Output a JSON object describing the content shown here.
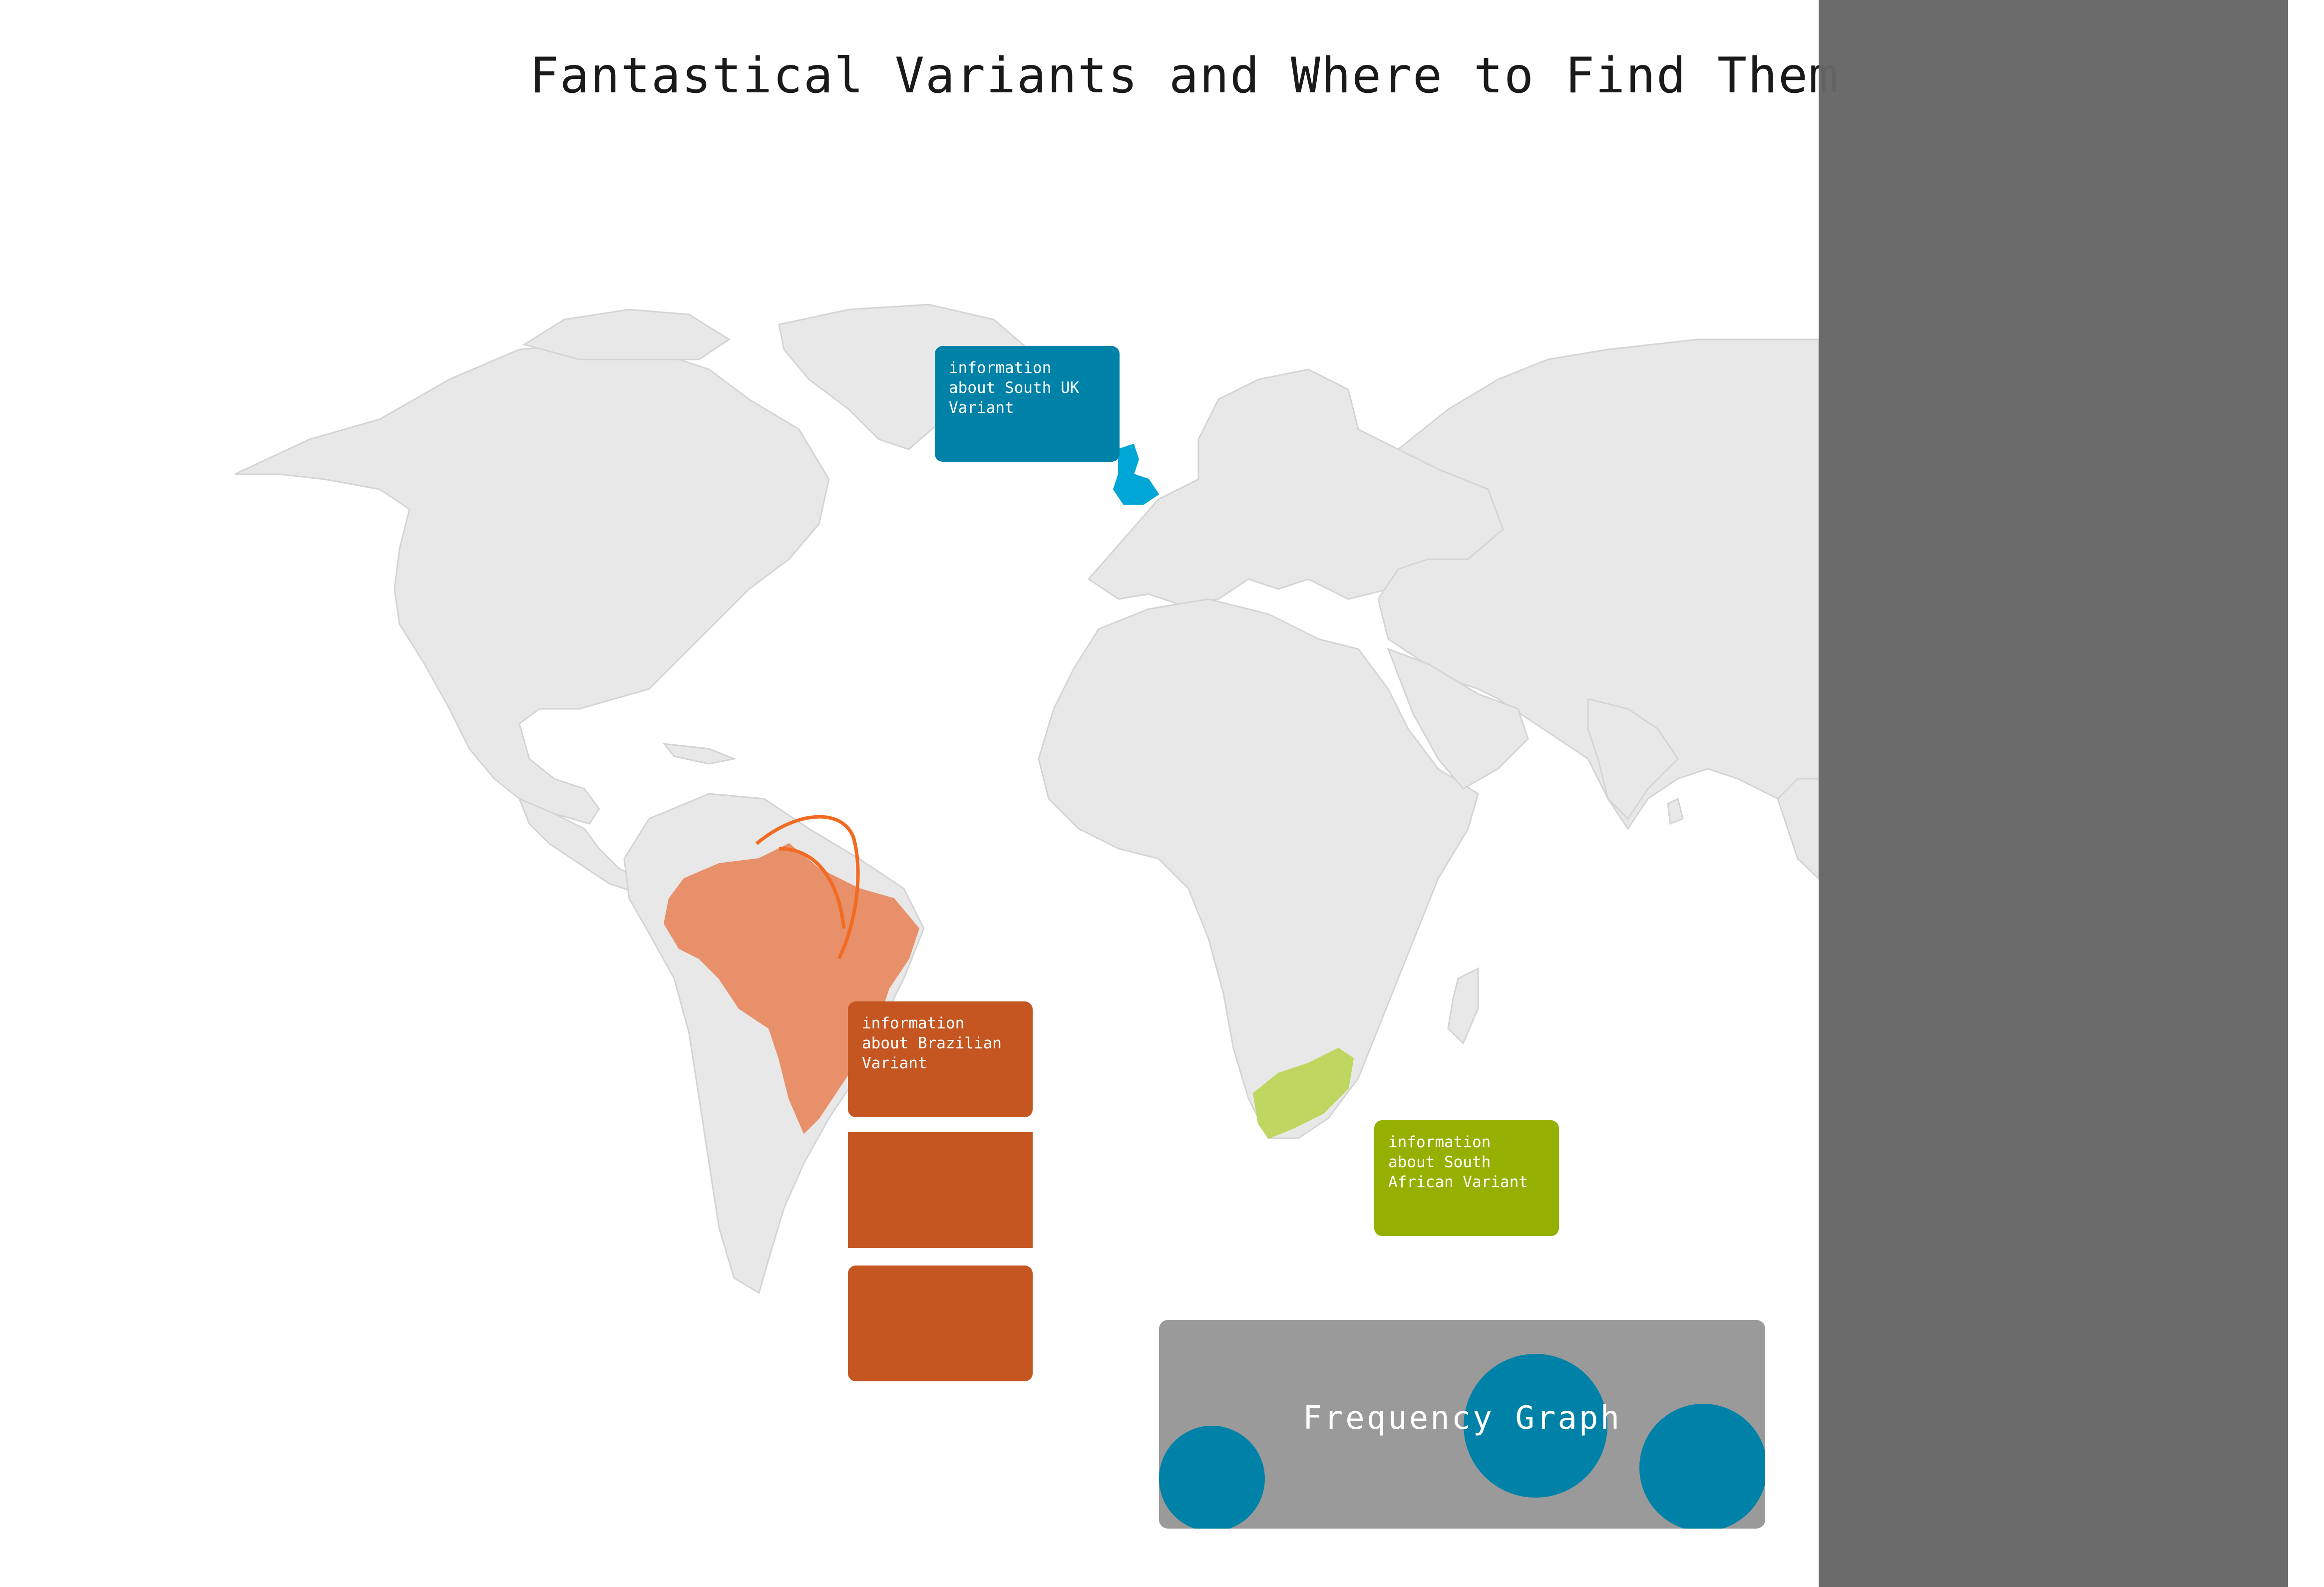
{
  "title": "Fantastical Variants and Where to Find Them",
  "markers": [
    {
      "id": "uk",
      "text": "information\nabout South UK\nVariant",
      "color": "#0081a7",
      "highlight": "#00a7d6"
    },
    {
      "id": "brazil",
      "text": "information\nabout Brazilian\nVariant",
      "color": "#c55622",
      "highlight": "#e8906a"
    },
    {
      "id": "south-africa",
      "text": "information\nabout South\nAfrican Variant",
      "color": "#95b000",
      "highlight": "#bfd660"
    }
  ],
  "frequency_graph": {
    "label": "Frequency Graph",
    "bubble_color": "#0081a7"
  },
  "colors": {
    "land": "#e8e8e8",
    "border": "#d4d4d4",
    "side_panel": "#666666",
    "flow_arrow": "#f26b22"
  }
}
